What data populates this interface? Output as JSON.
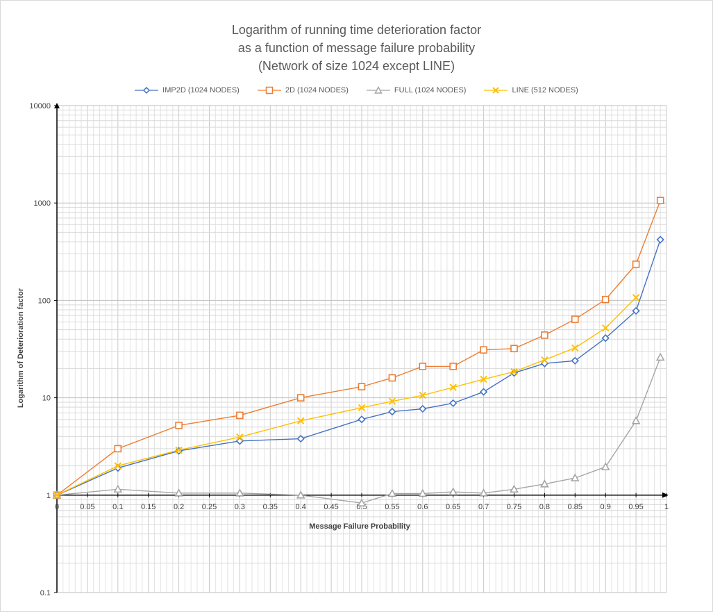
{
  "chart_data": {
    "type": "line",
    "title_lines": [
      "Logarithm of running time deterioration factor",
      "as a function of message failure probability",
      "(Network of size 1024 except LINE)"
    ],
    "xlabel": "Message Failure Probability",
    "ylabel": "Logarithm of Deterioration factor",
    "x_scale": "linear",
    "y_scale": "log",
    "xlim": [
      0,
      1
    ],
    "ylim": [
      0.1,
      10000
    ],
    "x_ticks": [
      "0",
      "0.05",
      "0.1",
      "0.15",
      "0.2",
      "0.25",
      "0.3",
      "0.35",
      "0.4",
      "0.45",
      "0.5",
      "0.55",
      "0.6",
      "0.65",
      "0.7",
      "0.75",
      "0.8",
      "0.85",
      "0.9",
      "0.95",
      "1"
    ],
    "y_ticks": [
      "0.1",
      "1",
      "10",
      "100",
      "1000",
      "10000"
    ],
    "grid": true,
    "legend_position": "top",
    "series": [
      {
        "name": "IMP2D (1024 NODES)",
        "color": "#4472c4",
        "marker": "diamond",
        "points": [
          [
            0,
            1
          ],
          [
            0.1,
            1.9
          ],
          [
            0.2,
            2.85
          ],
          [
            0.3,
            3.6
          ],
          [
            0.4,
            3.8
          ],
          [
            0.5,
            6.0
          ],
          [
            0.55,
            7.2
          ],
          [
            0.6,
            7.7
          ],
          [
            0.65,
            8.8
          ],
          [
            0.7,
            11.5
          ],
          [
            0.75,
            18
          ],
          [
            0.8,
            22.5
          ],
          [
            0.85,
            24
          ],
          [
            0.9,
            41
          ],
          [
            0.95,
            78
          ],
          [
            0.99,
            420
          ]
        ]
      },
      {
        "name": "2D (1024 NODES)",
        "color": "#ed7d31",
        "marker": "square",
        "points": [
          [
            0,
            1
          ],
          [
            0.1,
            3.0
          ],
          [
            0.2,
            5.2
          ],
          [
            0.3,
            6.6
          ],
          [
            0.4,
            10
          ],
          [
            0.5,
            13
          ],
          [
            0.55,
            16
          ],
          [
            0.6,
            21
          ],
          [
            0.65,
            21
          ],
          [
            0.7,
            31
          ],
          [
            0.75,
            32
          ],
          [
            0.8,
            44
          ],
          [
            0.85,
            64
          ],
          [
            0.9,
            102
          ],
          [
            0.95,
            235
          ],
          [
            0.99,
            1060
          ]
        ]
      },
      {
        "name": "FULL (1024 NODES)",
        "color": "#a5a5a5",
        "marker": "triangle",
        "points": [
          [
            0,
            1
          ],
          [
            0.1,
            1.15
          ],
          [
            0.2,
            1.05
          ],
          [
            0.3,
            1.05
          ],
          [
            0.4,
            1.0
          ],
          [
            0.5,
            0.83
          ],
          [
            0.55,
            1.04
          ],
          [
            0.6,
            1.04
          ],
          [
            0.65,
            1.08
          ],
          [
            0.7,
            1.05
          ],
          [
            0.75,
            1.15
          ],
          [
            0.8,
            1.3
          ],
          [
            0.85,
            1.5
          ],
          [
            0.9,
            1.95
          ],
          [
            0.95,
            5.8
          ],
          [
            0.99,
            26
          ]
        ]
      },
      {
        "name": "LINE (512 NODES)",
        "color": "#ffc000",
        "marker": "x",
        "points": [
          [
            0,
            1
          ],
          [
            0.1,
            2.0
          ],
          [
            0.2,
            2.9
          ],
          [
            0.3,
            3.95
          ],
          [
            0.4,
            5.8
          ],
          [
            0.5,
            7.9
          ],
          [
            0.55,
            9.2
          ],
          [
            0.6,
            10.6
          ],
          [
            0.65,
            12.8
          ],
          [
            0.7,
            15.5
          ],
          [
            0.75,
            18.5
          ],
          [
            0.8,
            24.5
          ],
          [
            0.85,
            32.5
          ],
          [
            0.9,
            52
          ],
          [
            0.95,
            107
          ]
        ]
      }
    ]
  }
}
